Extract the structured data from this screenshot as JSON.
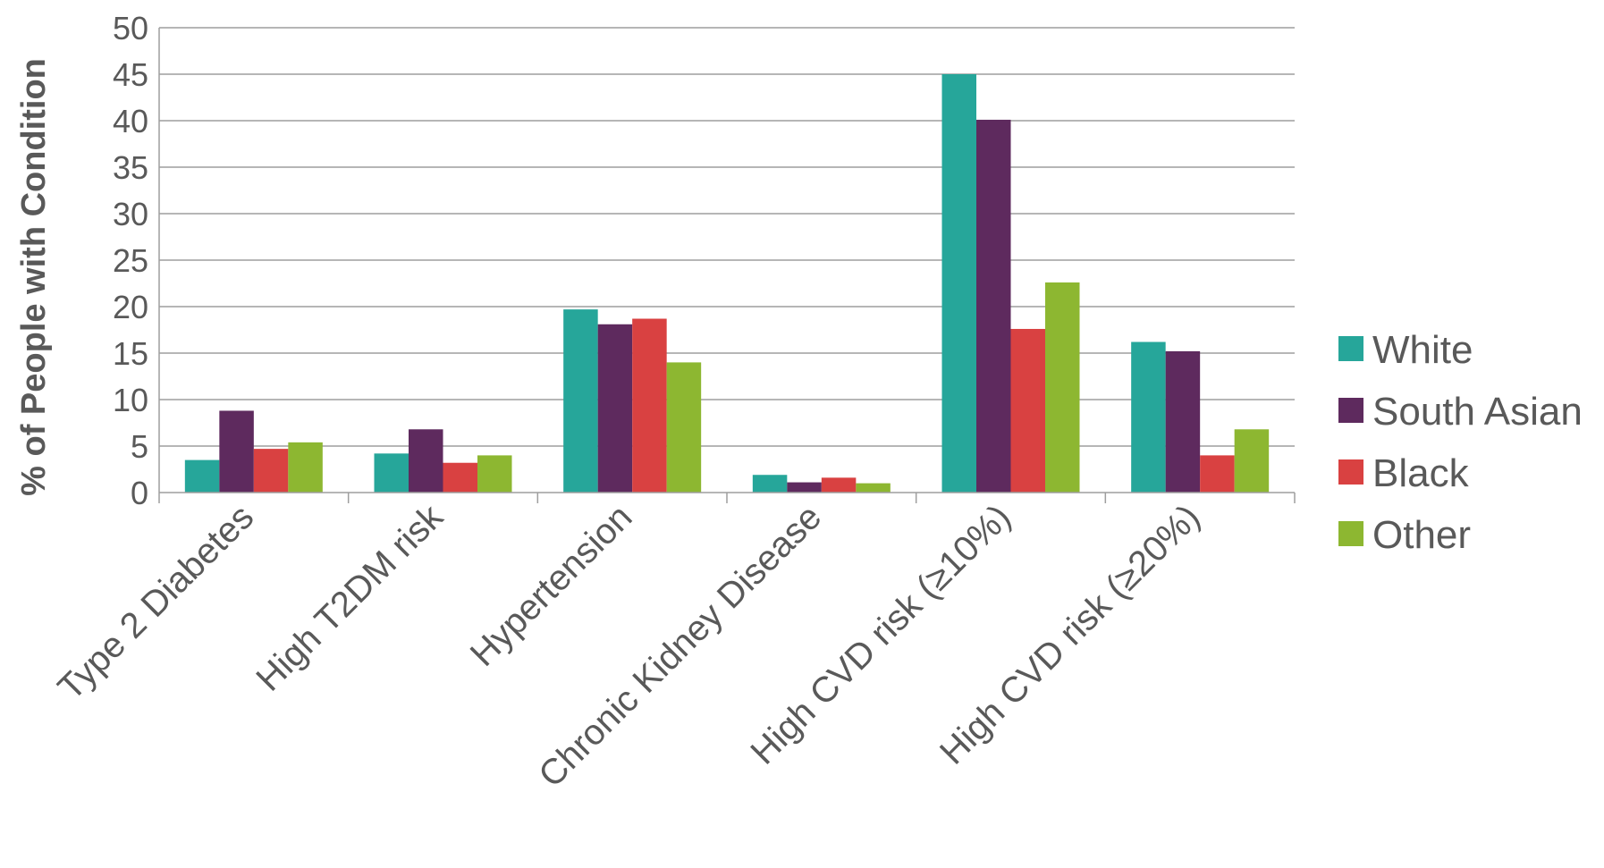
{
  "chart_data": {
    "type": "bar",
    "title": "",
    "xlabel": "",
    "ylabel": "% of People with Condition",
    "ylim": [
      0,
      50
    ],
    "ytick_step": 5,
    "grid": true,
    "legend_position": "right",
    "categories": [
      "Type 2 Diabetes",
      "High T2DM risk",
      "Hypertension",
      "Chronic Kidney Disease",
      "High CVD risk (≥10%)",
      "High CVD risk (≥20%)"
    ],
    "series": [
      {
        "name": "White",
        "color": "#26A69A",
        "values": [
          3.5,
          4.2,
          19.7,
          1.9,
          45.0,
          16.2
        ]
      },
      {
        "name": "South Asian",
        "color": "#5E2A5E",
        "values": [
          8.8,
          6.8,
          18.1,
          1.1,
          40.1,
          15.2
        ]
      },
      {
        "name": "Black",
        "color": "#D94141",
        "values": [
          4.7,
          3.2,
          18.7,
          1.6,
          17.6,
          4.0
        ]
      },
      {
        "name": "Other",
        "color": "#8DB731",
        "values": [
          5.4,
          4.0,
          14.0,
          1.0,
          22.6,
          6.8
        ]
      }
    ]
  }
}
